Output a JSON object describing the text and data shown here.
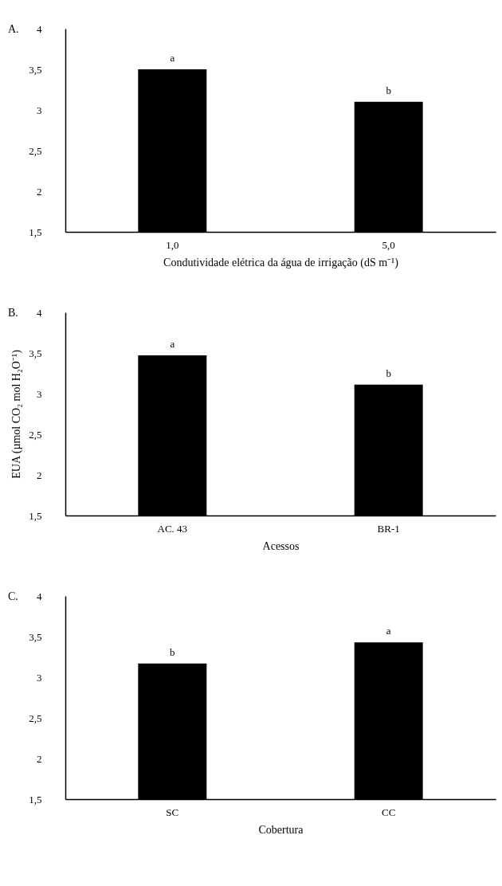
{
  "chart_data": [
    {
      "type": "bar",
      "title": "A.",
      "xlabel": "Condutividade elétrica da água de irrigação (dS m⁻¹)",
      "categories": [
        "1,0",
        "5,0"
      ],
      "values": [
        3.5,
        3.1
      ],
      "color": "#000000",
      "ylim": [
        1.5,
        4
      ],
      "yticks": [
        {
          "value": 1.5,
          "label": "1,5"
        },
        2,
        {
          "value": 2.5,
          "label": "2,5"
        },
        3,
        {
          "value": 3.5,
          "label": "3,5"
        },
        4
      ],
      "annotations": [
        {
          "text": "a",
          "x": "1,0",
          "y": 3.5
        },
        {
          "text": "b",
          "x": "5,0",
          "y": 3.1
        }
      ]
    },
    {
      "type": "bar",
      "title": "B.",
      "xlabel": "Acessos",
      "ylabel": "EUA (µmol CO₂ mol H₂O⁻¹)",
      "categories": [
        "AC. 43",
        "BR-1"
      ],
      "values": [
        3.47,
        3.11
      ],
      "color": "#000000",
      "ylim": [
        1.5,
        4
      ],
      "yticks": [
        {
          "value": 1.5,
          "label": "1,5"
        },
        2,
        {
          "value": 2.5,
          "label": "2,5"
        },
        3,
        {
          "value": 3.5,
          "label": "3,5"
        },
        4
      ],
      "annotations": [
        {
          "text": "a",
          "x": "AC. 43",
          "y": 3.47
        },
        {
          "text": "b",
          "x": "BR-1",
          "y": 3.11
        }
      ]
    },
    {
      "type": "bar",
      "title": "C.",
      "xlabel": "Cobertura",
      "categories": [
        "SC",
        "CC"
      ],
      "values": [
        3.17,
        3.43
      ],
      "color": "#000000",
      "ylim": [
        1.5,
        4
      ],
      "yticks": [
        {
          "value": 1.5,
          "label": "1,5"
        },
        2,
        {
          "value": 2.5,
          "label": "2,5"
        },
        3,
        {
          "value": 3.5,
          "label": "3,5"
        },
        4
      ],
      "annotations": [
        {
          "text": "b",
          "x": "SC",
          "y": 3.17
        },
        {
          "text": "a",
          "x": "CC",
          "y": 3.43
        }
      ]
    }
  ]
}
